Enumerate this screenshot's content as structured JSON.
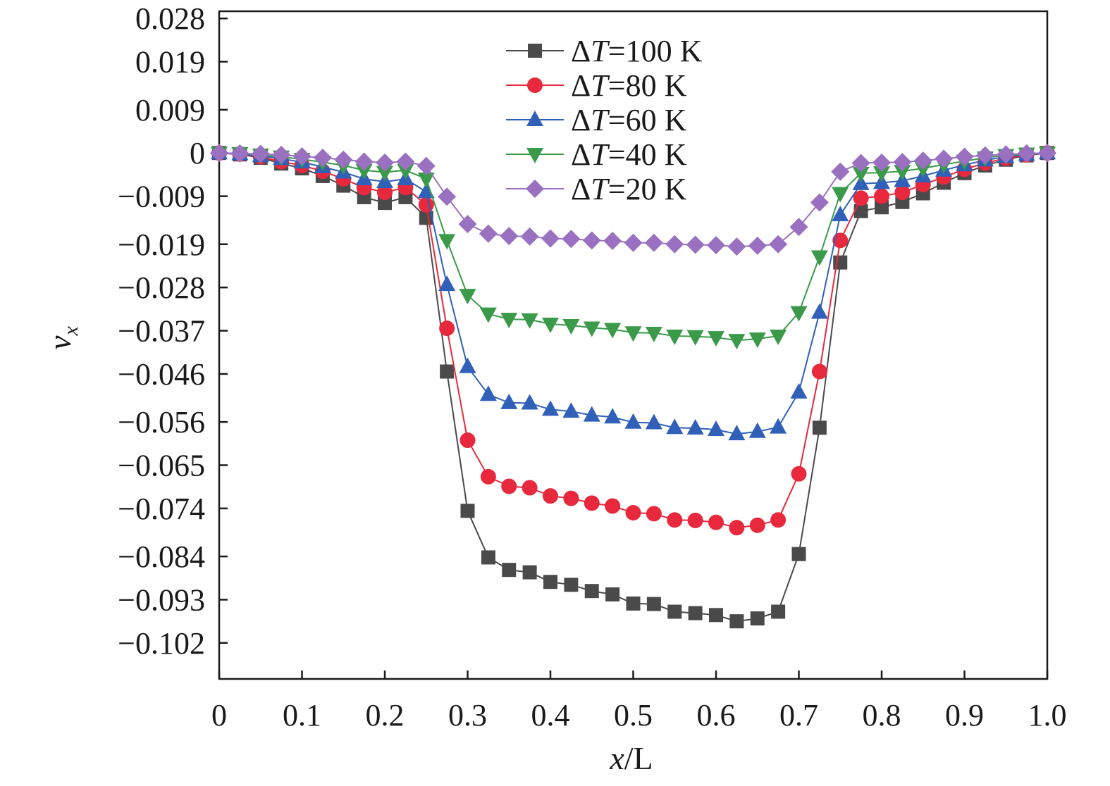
{
  "chart_data": {
    "type": "line",
    "xlabel": "x/L",
    "ylabel": "vx",
    "xlim": [
      0,
      1.0
    ],
    "ylim": [
      -0.1095,
      0.0295
    ],
    "x_ticks": [
      0,
      0.1,
      0.2,
      0.3,
      0.4,
      0.5,
      0.6,
      0.7,
      0.8,
      0.9,
      1.0
    ],
    "x_tick_labels": [
      "0",
      "0.1",
      "0.2",
      "0.3",
      "0.4",
      "0.5",
      "0.6",
      "0.7",
      "0.8",
      "0.9",
      "1.0"
    ],
    "y_ticks": [
      0.028,
      0.019,
      0.009,
      0,
      -0.009,
      -0.019,
      -0.028,
      -0.037,
      -0.046,
      -0.056,
      -0.065,
      -0.074,
      -0.084,
      -0.093,
      -0.102
    ],
    "y_tick_labels": [
      "0.028",
      "0.019",
      "0.009",
      "0",
      "−0.009",
      "−0.019",
      "−0.028",
      "−0.037",
      "−0.046",
      "−0.056",
      "−0.065",
      "−0.074",
      "−0.084",
      "−0.093",
      "−0.102"
    ],
    "legend_position": "top-center",
    "grid": false,
    "x": [
      0,
      0.025,
      0.05,
      0.075,
      0.1,
      0.125,
      0.15,
      0.175,
      0.2,
      0.225,
      0.25,
      0.275,
      0.3,
      0.325,
      0.35,
      0.375,
      0.4,
      0.425,
      0.45,
      0.475,
      0.5,
      0.525,
      0.55,
      0.575,
      0.6,
      0.625,
      0.65,
      0.675,
      0.7,
      0.725,
      0.75,
      0.775,
      0.8,
      0.825,
      0.85,
      0.875,
      0.9,
      0.925,
      0.95,
      0.975,
      1.0
    ],
    "series": [
      {
        "name": "ΔT=100 K",
        "name_prefix": "Δ",
        "name_var": "T",
        "name_suffix": "=100 K",
        "color": "#4a4a4a",
        "marker": "square",
        "values": [
          0,
          -0.0003,
          -0.001,
          -0.0022,
          -0.0032,
          -0.0048,
          -0.0068,
          -0.0092,
          -0.0104,
          -0.0092,
          -0.0135,
          -0.0455,
          -0.0745,
          -0.0842,
          -0.0868,
          -0.0873,
          -0.0893,
          -0.0899,
          -0.0912,
          -0.0919,
          -0.0938,
          -0.0939,
          -0.0955,
          -0.0958,
          -0.0962,
          -0.0975,
          -0.0969,
          -0.0955,
          -0.0835,
          -0.0572,
          -0.0228,
          -0.0121,
          -0.0113,
          -0.0102,
          -0.0084,
          -0.0062,
          -0.0042,
          -0.0026,
          -0.0014,
          -0.0005,
          0
        ]
      },
      {
        "name": "ΔT=80 K",
        "name_prefix": "Δ",
        "name_var": "T",
        "name_suffix": "=80 K",
        "color": "#e8283c",
        "marker": "circle",
        "values": [
          0,
          -0.0002,
          -0.0008,
          -0.0018,
          -0.0026,
          -0.0038,
          -0.0054,
          -0.0072,
          -0.0082,
          -0.0072,
          -0.0108,
          -0.0365,
          -0.0598,
          -0.0674,
          -0.0694,
          -0.0697,
          -0.0714,
          -0.0719,
          -0.0729,
          -0.0735,
          -0.0749,
          -0.0751,
          -0.0764,
          -0.0765,
          -0.0769,
          -0.078,
          -0.0775,
          -0.0764,
          -0.0668,
          -0.0455,
          -0.0182,
          -0.0094,
          -0.009,
          -0.0082,
          -0.0066,
          -0.005,
          -0.0034,
          -0.0021,
          -0.0011,
          -0.0004,
          0
        ]
      },
      {
        "name": "ΔT=60 K",
        "name_prefix": "Δ",
        "name_var": "T",
        "name_suffix": "=60 K",
        "color": "#3060b8",
        "marker": "triangle-up",
        "values": [
          0,
          -0.0002,
          -0.0006,
          -0.0012,
          -0.0019,
          -0.0029,
          -0.004,
          -0.0054,
          -0.006,
          -0.0054,
          -0.0081,
          -0.0274,
          -0.0445,
          -0.0503,
          -0.052,
          -0.0521,
          -0.0534,
          -0.0538,
          -0.0546,
          -0.055,
          -0.0561,
          -0.0562,
          -0.0572,
          -0.0573,
          -0.0576,
          -0.0585,
          -0.058,
          -0.0571,
          -0.0498,
          -0.0332,
          -0.0129,
          -0.0064,
          -0.0062,
          -0.0058,
          -0.0048,
          -0.0036,
          -0.0025,
          -0.0015,
          -0.0008,
          -0.0003,
          0
        ]
      },
      {
        "name": "ΔT=40 K",
        "name_prefix": "Δ",
        "name_var": "T",
        "name_suffix": "=40 K",
        "color": "#3a9a4a",
        "marker": "triangle-down",
        "values": [
          0,
          -0.0001,
          -0.0004,
          -0.0008,
          -0.0013,
          -0.0019,
          -0.0026,
          -0.0036,
          -0.004,
          -0.0036,
          -0.0054,
          -0.0182,
          -0.0296,
          -0.0335,
          -0.0346,
          -0.0347,
          -0.0356,
          -0.0359,
          -0.0364,
          -0.0367,
          -0.0374,
          -0.0375,
          -0.0381,
          -0.0382,
          -0.0384,
          -0.039,
          -0.0387,
          -0.0381,
          -0.0332,
          -0.0216,
          -0.0084,
          -0.0042,
          -0.0041,
          -0.0038,
          -0.0032,
          -0.0024,
          -0.0017,
          -0.001,
          -0.0005,
          -0.0002,
          0
        ]
      },
      {
        "name": "ΔT=20 K",
        "name_prefix": "Δ",
        "name_var": "T",
        "name_suffix": "=20 K",
        "color": "#9a70c0",
        "marker": "diamond",
        "values": [
          0,
          -0.0001,
          -0.0002,
          -0.0004,
          -0.0007,
          -0.001,
          -0.0014,
          -0.0018,
          -0.002,
          -0.0018,
          -0.0027,
          -0.0091,
          -0.0148,
          -0.0168,
          -0.0173,
          -0.0174,
          -0.0178,
          -0.0179,
          -0.0182,
          -0.0183,
          -0.0187,
          -0.0187,
          -0.019,
          -0.0191,
          -0.0192,
          -0.0195,
          -0.0193,
          -0.019,
          -0.0154,
          -0.0103,
          -0.0039,
          -0.0021,
          -0.002,
          -0.0019,
          -0.0016,
          -0.0012,
          -0.0008,
          -0.0005,
          -0.0003,
          -0.0001,
          0
        ]
      }
    ]
  }
}
